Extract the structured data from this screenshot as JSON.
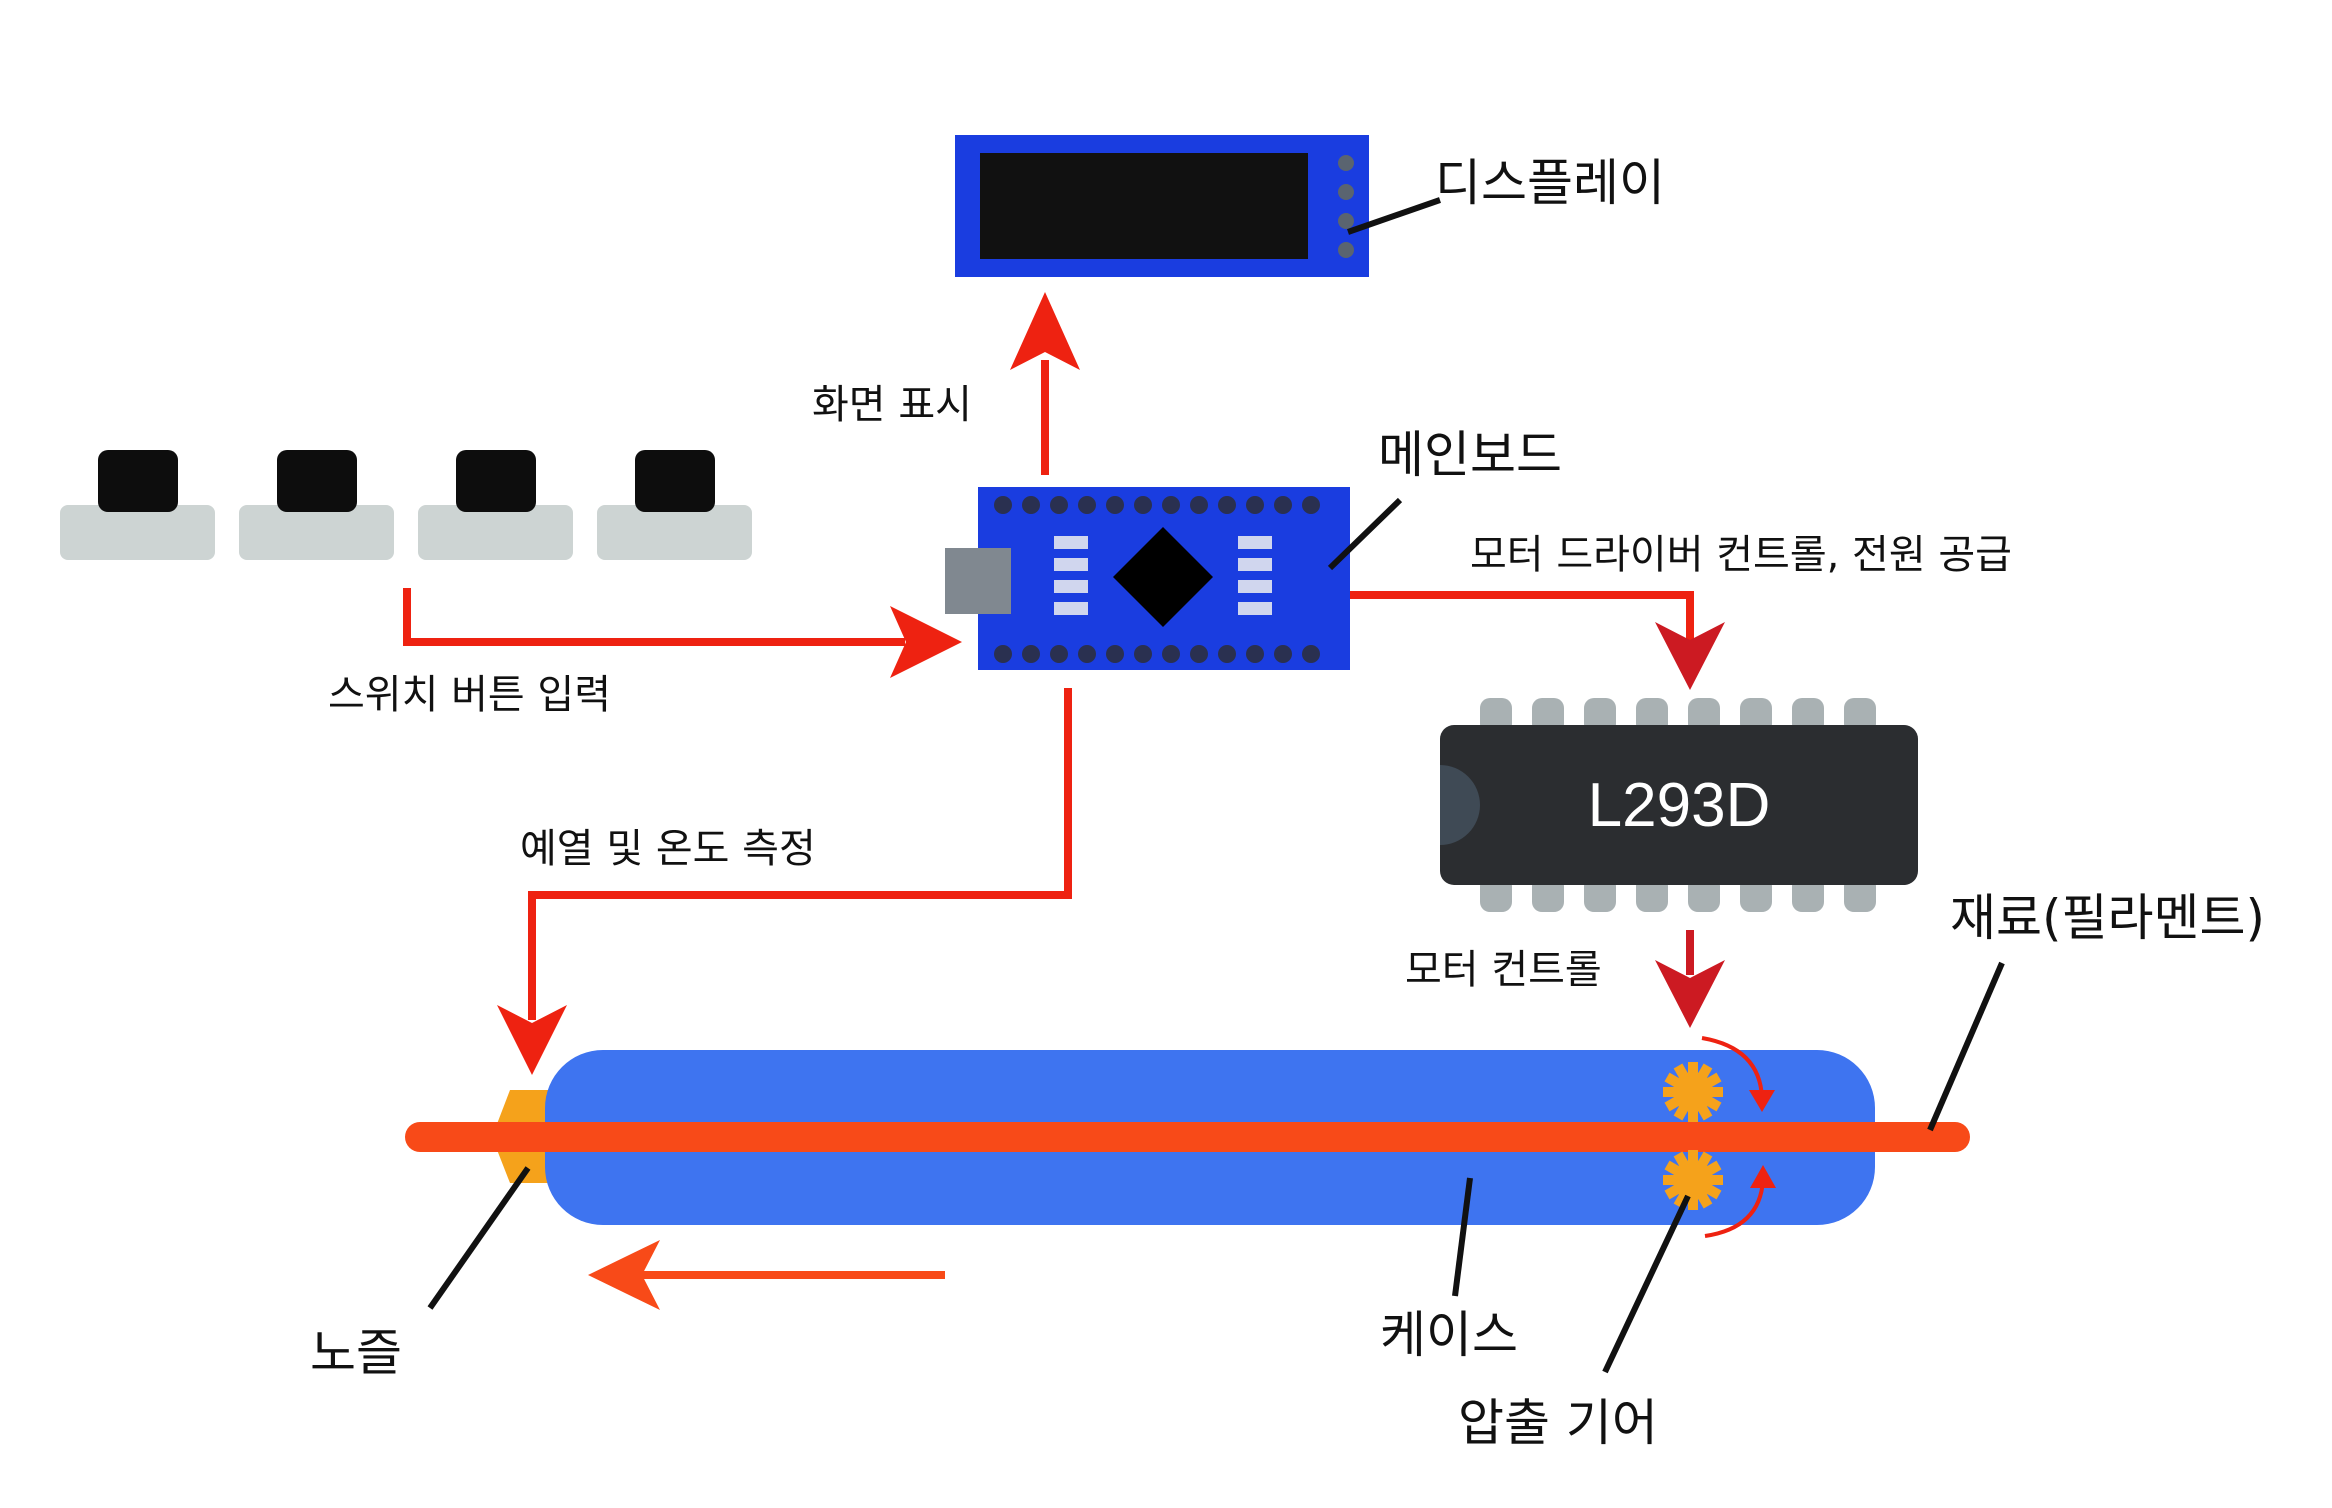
{
  "labels": {
    "display": "디스플레이",
    "screen_output": "화면 표시",
    "mainboard": "메인보드",
    "motor_driver_power": "모터 드라이버 컨트롤, 전원 공급",
    "switch_input": "스위치 버튼 입력",
    "preheat_temp": "예열 및 온도 측정",
    "chip": "L293D",
    "motor_control": "모터 컨트롤",
    "filament": "재료(필라멘트)",
    "nozzle": "노즐",
    "case": "케이스",
    "extrusion_gear": "압출 기어"
  },
  "colors": {
    "arrow_red": "#ee2211",
    "board_blue": "#1a3de0",
    "case_blue": "#3e74f0",
    "filament_orange": "#f84a18",
    "gear_orange": "#f5a21b",
    "chip_black": "#2b2d30",
    "button_gray": "#cdd4d3"
  }
}
